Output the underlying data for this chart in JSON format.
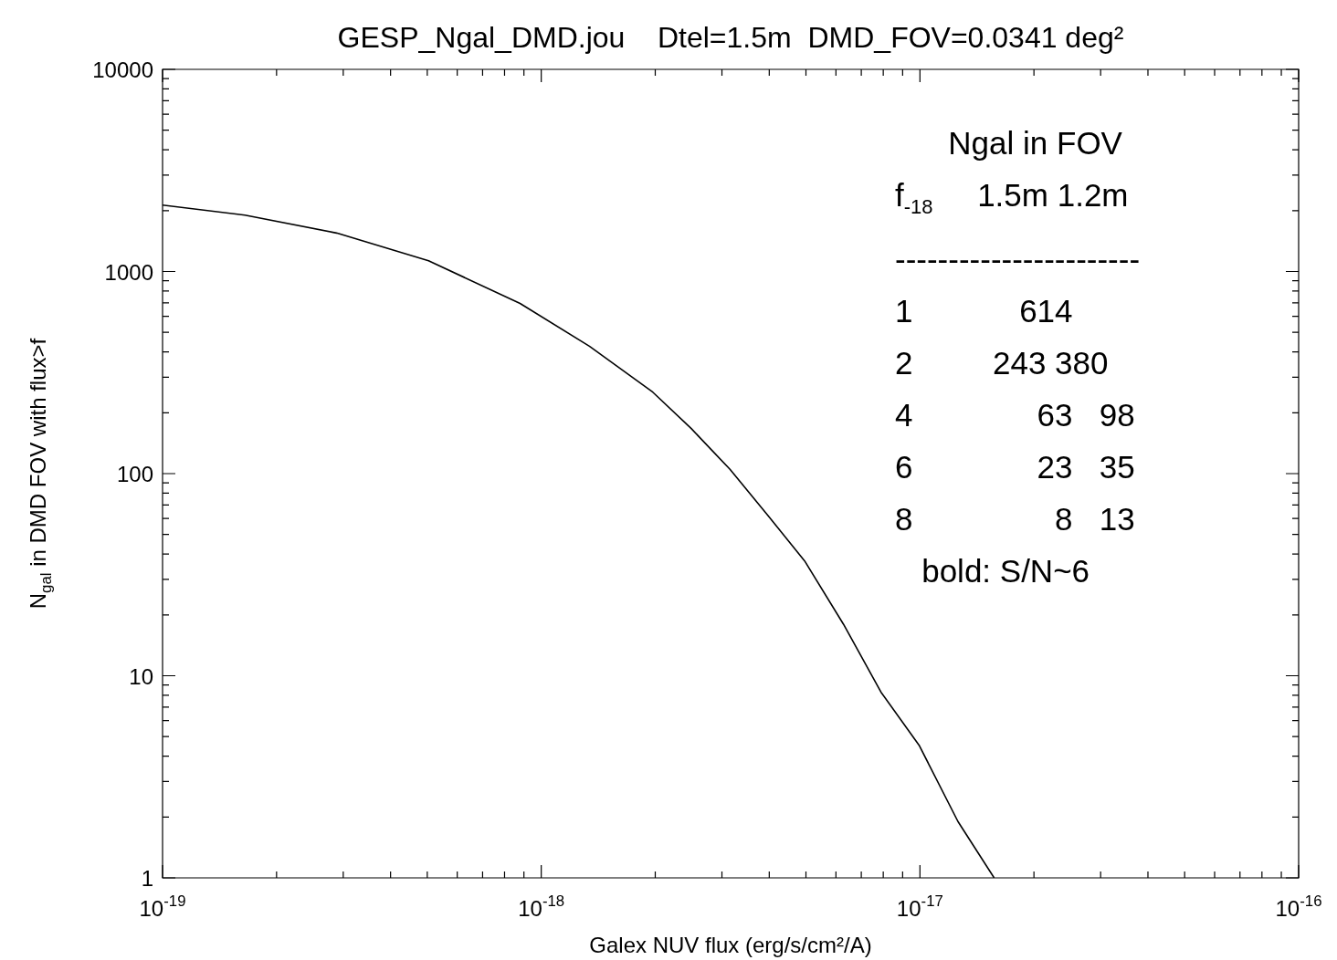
{
  "chart_data": {
    "type": "line",
    "title": "GESP_Ngal_DMD.jou    Dtel=1.5m  DMD_FOV=0.0341 deg²",
    "xlabel": "Galex NUV flux (erg/s/cm²/A)",
    "ylabel": "N$_{gal}$ in DMD FOV with flux>f",
    "log": "xy",
    "marker": "none",
    "line_style": "solid",
    "xlim": [
      1e-19,
      1e-16
    ],
    "ylim": [
      1,
      10000
    ],
    "xticks": [
      {
        "value": 1e-19,
        "label": "10$^{-19}$"
      },
      {
        "value": 2e-19,
        "label": null
      },
      {
        "value": 3e-19,
        "label": null
      },
      {
        "value": 4e-19,
        "label": null
      },
      {
        "value": 5e-19,
        "label": null
      },
      {
        "value": 6e-19,
        "label": null
      },
      {
        "value": 7e-19,
        "label": null
      },
      {
        "value": 8e-19,
        "label": null
      },
      {
        "value": 9e-19,
        "label": null
      },
      {
        "value": 1e-18,
        "label": "10$^{-18}$"
      },
      {
        "value": 2e-18,
        "label": null
      },
      {
        "value": 3e-18,
        "label": null
      },
      {
        "value": 4e-18,
        "label": null
      },
      {
        "value": 5e-18,
        "label": null
      },
      {
        "value": 6e-18,
        "label": null
      },
      {
        "value": 7e-18,
        "label": null
      },
      {
        "value": 8e-18,
        "label": null
      },
      {
        "value": 9e-18,
        "label": null
      },
      {
        "value": 1e-17,
        "label": "10$^{-17}$"
      },
      {
        "value": 2e-17,
        "label": null
      },
      {
        "value": 3e-17,
        "label": null
      },
      {
        "value": 4e-17,
        "label": null
      },
      {
        "value": 5e-17,
        "label": null
      },
      {
        "value": 6e-17,
        "label": null
      },
      {
        "value": 7e-17,
        "label": null
      },
      {
        "value": 8e-17,
        "label": null
      },
      {
        "value": 9e-17,
        "label": null
      },
      {
        "value": 1e-16,
        "label": "10$^{-16}$"
      }
    ],
    "yticks": [
      1,
      {
        "value": 2,
        "label": null
      },
      {
        "value": 3,
        "label": null
      },
      {
        "value": 4,
        "label": null
      },
      {
        "value": 5,
        "label": null
      },
      {
        "value": 6,
        "label": null
      },
      {
        "value": 7,
        "label": null
      },
      {
        "value": 8,
        "label": null
      },
      {
        "value": 9,
        "label": null
      },
      10,
      {
        "value": 20,
        "label": null
      },
      {
        "value": 30,
        "label": null
      },
      {
        "value": 40,
        "label": null
      },
      {
        "value": 50,
        "label": null
      },
      {
        "value": 60,
        "label": null
      },
      {
        "value": 70,
        "label": null
      },
      {
        "value": 80,
        "label": null
      },
      {
        "value": 90,
        "label": null
      },
      100,
      {
        "value": 200,
        "label": null
      },
      {
        "value": 300,
        "label": null
      },
      {
        "value": 400,
        "label": null
      },
      {
        "value": 500,
        "label": null
      },
      {
        "value": 600,
        "label": null
      },
      {
        "value": 700,
        "label": null
      },
      {
        "value": 800,
        "label": null
      },
      {
        "value": 900,
        "label": null
      },
      1000,
      {
        "value": 2000,
        "label": null
      },
      {
        "value": 3000,
        "label": null
      },
      {
        "value": 4000,
        "label": null
      },
      {
        "value": 5000,
        "label": null
      },
      {
        "value": 6000,
        "label": null
      },
      {
        "value": 7000,
        "label": null
      },
      {
        "value": 8000,
        "label": null
      },
      {
        "value": 9000,
        "label": null
      },
      10000
    ],
    "series": [
      {
        "color": "#000000",
        "x": [
          1e-19,
          1.65e-19,
          2.88e-19,
          5.04e-19,
          8.79e-19,
          1.34e-18,
          1.97e-18,
          2.49e-18,
          3.15e-18,
          3.97e-18,
          4.96e-18,
          6.28e-18,
          7.89e-18,
          9.97e-18,
          1.26e-17,
          1.57e-17
        ],
        "values": [
          2130,
          1900,
          1550,
          1130,
          695,
          427,
          253,
          167,
          105,
          62,
          37,
          18,
          8.3,
          4.5,
          1.9,
          1
        ]
      }
    ],
    "annotations": [
      "      Ngal in FOV",
      "f$_{-18}$     1.5m 1.2m",
      "-----------------------",
      "1            614",
      "2         243 380",
      "4              63   98",
      "6              23   35",
      "8                8   13",
      "   bold: S/N~6"
    ]
  }
}
